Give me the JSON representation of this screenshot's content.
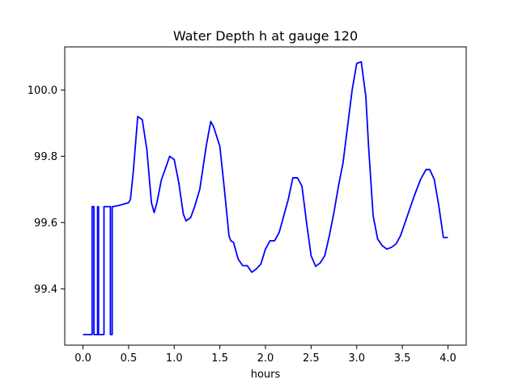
{
  "chart_data": {
    "type": "line",
    "title": "Water Depth h at gauge 120",
    "xlabel": "hours",
    "ylabel": "",
    "xlim": [
      -0.2,
      4.2
    ],
    "ylim": [
      99.23,
      100.13
    ],
    "xticks": [
      0.0,
      0.5,
      1.0,
      1.5,
      2.0,
      2.5,
      3.0,
      3.5,
      4.0
    ],
    "xtick_labels": [
      "0.0",
      "0.5",
      "1.0",
      "1.5",
      "2.0",
      "2.5",
      "3.0",
      "3.5",
      "4.0"
    ],
    "yticks": [
      99.4,
      99.6,
      99.8,
      100.0
    ],
    "ytick_labels": [
      "99.4",
      "99.6",
      "99.8",
      "100.0"
    ],
    "grid": false,
    "line_color": "#0000ff",
    "series": [
      {
        "x": [
          0.0,
          0.1,
          0.1,
          0.12,
          0.12,
          0.16,
          0.16,
          0.17,
          0.17,
          0.23,
          0.23,
          0.3,
          0.3,
          0.32,
          0.32,
          0.33,
          0.33,
          0.4,
          0.5,
          0.52,
          0.55,
          0.6,
          0.65,
          0.7,
          0.75,
          0.78,
          0.81,
          0.86,
          0.9,
          0.95,
          1.0,
          1.05,
          1.1,
          1.13,
          1.18,
          1.22,
          1.28,
          1.35,
          1.4,
          1.43,
          1.5,
          1.55,
          1.6,
          1.62,
          1.65,
          1.7,
          1.75,
          1.8,
          1.85,
          1.9,
          1.95,
          2.0,
          2.05,
          2.1,
          2.15,
          2.2,
          2.25,
          2.3,
          2.35,
          2.4,
          2.45,
          2.5,
          2.55,
          2.6,
          2.65,
          2.7,
          2.75,
          2.8,
          2.85,
          2.9,
          2.95,
          3.0,
          3.05,
          3.1,
          3.13,
          3.18,
          3.23,
          3.28,
          3.33,
          3.38,
          3.43,
          3.48,
          3.53,
          3.58,
          3.63,
          3.7,
          3.76,
          3.8,
          3.85,
          3.9,
          3.95,
          4.0
        ],
        "y": [
          99.262,
          99.262,
          99.648,
          99.648,
          99.262,
          99.262,
          99.648,
          99.648,
          99.262,
          99.262,
          99.648,
          99.648,
          99.262,
          99.262,
          99.648,
          99.648,
          99.648,
          99.652,
          99.66,
          99.67,
          99.75,
          99.92,
          99.91,
          99.82,
          99.66,
          99.63,
          99.66,
          99.73,
          99.76,
          99.8,
          99.79,
          99.72,
          99.625,
          99.605,
          99.615,
          99.645,
          99.7,
          99.83,
          99.905,
          99.89,
          99.83,
          99.7,
          99.56,
          99.545,
          99.54,
          99.49,
          99.47,
          99.47,
          99.45,
          99.46,
          99.475,
          99.52,
          99.545,
          99.545,
          99.57,
          99.62,
          99.67,
          99.735,
          99.735,
          99.71,
          99.6,
          99.5,
          99.468,
          99.478,
          99.5,
          99.56,
          99.63,
          99.71,
          99.78,
          99.89,
          100.0,
          100.08,
          100.085,
          99.98,
          99.83,
          99.62,
          99.55,
          99.53,
          99.52,
          99.525,
          99.535,
          99.56,
          99.6,
          99.64,
          99.68,
          99.73,
          99.76,
          99.76,
          99.73,
          99.65,
          99.555,
          99.555
        ]
      }
    ]
  }
}
